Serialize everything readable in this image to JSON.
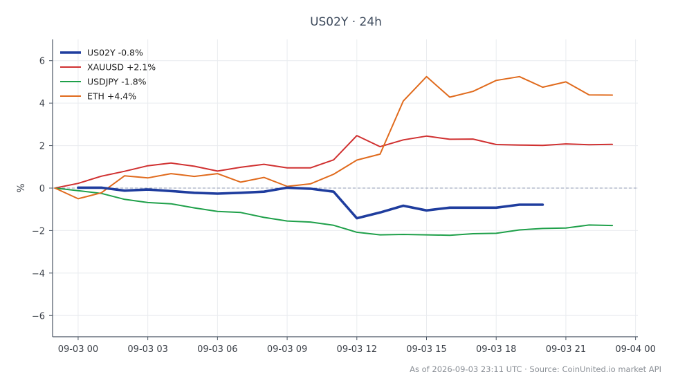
{
  "chart_data": {
    "type": "line",
    "title": "US02Y · 24h",
    "xlabel": "",
    "ylabel": "%",
    "ylim": [
      -7,
      7
    ],
    "yticks": [
      -6,
      -4,
      -2,
      0,
      2,
      4,
      6
    ],
    "ytick_labels": [
      "−6",
      "−4",
      "−2",
      "0",
      "2",
      "4",
      "6"
    ],
    "xlim": [
      -1.1,
      24.1
    ],
    "xticks": [
      0,
      3,
      6,
      9,
      12,
      15,
      18,
      21,
      24
    ],
    "xtick_labels": [
      "09-03 00",
      "09-03 03",
      "09-03 06",
      "09-03 09",
      "09-03 12",
      "09-03 15",
      "09-03 18",
      "09-03 21",
      "09-04 00"
    ],
    "grid": true,
    "zero_line": true,
    "legend_position": "top-left",
    "series": [
      {
        "name": "US02Y -0.8%",
        "color": "#1f3d9e",
        "width": 3.6,
        "x": [
          0,
          1,
          2,
          3,
          4,
          5,
          6,
          7,
          8,
          9,
          10,
          11,
          12,
          13,
          14,
          15,
          16,
          17,
          18,
          19,
          20
        ],
        "values": [
          0.02,
          0.02,
          -0.12,
          -0.07,
          -0.14,
          -0.22,
          -0.26,
          -0.22,
          -0.17,
          0.02,
          -0.03,
          -0.17,
          -1.42,
          -1.15,
          -0.83,
          -1.05,
          -0.92,
          -0.92,
          -0.92,
          -0.78,
          -0.78
        ]
      },
      {
        "name": "XAUUSD +2.1%",
        "color": "#d03030",
        "width": 2,
        "x": [
          -1,
          0,
          1,
          2,
          3,
          4,
          5,
          6,
          7,
          8,
          9,
          10,
          11,
          12,
          13,
          14,
          15,
          16,
          17,
          18,
          19,
          20,
          21,
          22,
          23
        ],
        "values": [
          0.0,
          0.22,
          0.56,
          0.79,
          1.05,
          1.18,
          1.03,
          0.8,
          0.98,
          1.12,
          0.95,
          0.95,
          1.33,
          2.47,
          1.95,
          2.27,
          2.45,
          2.3,
          2.31,
          2.05,
          2.03,
          2.01,
          2.08,
          2.04,
          2.06
        ]
      },
      {
        "name": "USDJPY -1.8%",
        "color": "#1fa04a",
        "width": 2,
        "x": [
          -1,
          0,
          1,
          2,
          3,
          4,
          5,
          6,
          7,
          8,
          9,
          10,
          11,
          12,
          13,
          14,
          15,
          16,
          17,
          18,
          19,
          20,
          21,
          22,
          23
        ],
        "values": [
          0.0,
          -0.12,
          -0.25,
          -0.53,
          -0.68,
          -0.74,
          -0.93,
          -1.1,
          -1.15,
          -1.38,
          -1.55,
          -1.6,
          -1.75,
          -2.08,
          -2.2,
          -2.18,
          -2.2,
          -2.22,
          -2.15,
          -2.13,
          -1.97,
          -1.9,
          -1.88,
          -1.74,
          -1.76
        ]
      },
      {
        "name": "ETH +4.4%",
        "color": "#e06a1c",
        "width": 2,
        "x": [
          -1,
          0,
          1,
          2,
          3,
          4,
          5,
          6,
          7,
          8,
          9,
          10,
          11,
          12,
          13,
          14,
          15,
          16,
          17,
          18,
          19,
          20,
          21,
          22,
          23
        ],
        "values": [
          0.0,
          -0.5,
          -0.22,
          0.58,
          0.48,
          0.68,
          0.55,
          0.68,
          0.28,
          0.5,
          0.08,
          0.2,
          0.65,
          1.32,
          1.6,
          4.1,
          5.25,
          4.28,
          4.55,
          5.07,
          5.25,
          4.75,
          5.0,
          4.39,
          4.38
        ]
      }
    ],
    "footer": "As of 2026-09-03 23:11 UTC · Source: CoinUnited.io market API"
  }
}
